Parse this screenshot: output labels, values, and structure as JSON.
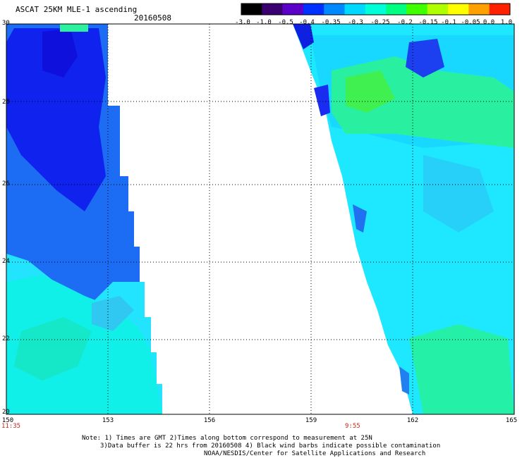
{
  "header": {
    "title": "ASCAT 25KM MLE-1 ascending",
    "date": "20160508"
  },
  "colorbar": {
    "labels": [
      "-3.0",
      "-1.0",
      "-0.5",
      "-0.4",
      "-0.35",
      "-0.3",
      "-0.25",
      "-0.2",
      "-0.15",
      "-0.1",
      "-0.05",
      "0.0",
      "1.0"
    ],
    "colors": [
      "#000000",
      "#3a0070",
      "#5a00c8",
      "#0030ff",
      "#0088ff",
      "#00d8ff",
      "#00ffd8",
      "#00ff80",
      "#40ff00",
      "#b0ff00",
      "#ffff00",
      "#ffa000",
      "#ff2000"
    ]
  },
  "axes": {
    "y_labels": [
      "30",
      "28",
      "26",
      "24",
      "22",
      "20"
    ],
    "x_labels": [
      "150",
      "153",
      "156",
      "159",
      "162",
      "165"
    ]
  },
  "times": {
    "left": "11:35",
    "right": "9:55"
  },
  "footer": {
    "line1": "Note: 1) Times are GMT 2)Times along bottom correspond to measurement at 25N",
    "line2": "3)Data buffer is 22 hrs from 20160508 4) Black wind barbs indicate possible contamination",
    "line3": "NOAA/NESDIS/Center for Satellite Applications and Research"
  },
  "colors": {
    "deep_blue": "#1010ee",
    "blue": "#1c5cf2",
    "cyan": "#00f0ff",
    "aqua": "#00ffd2",
    "green": "#30ff50",
    "gridline": "#000000",
    "time_label": "#c0281e"
  }
}
